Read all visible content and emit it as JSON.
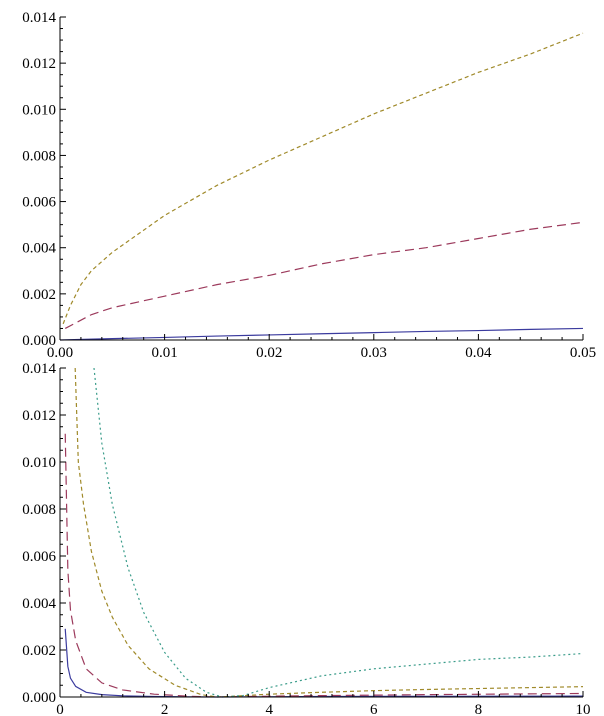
{
  "chart_data": [
    {
      "type": "line",
      "xlim": [
        0,
        0.05
      ],
      "ylim": [
        0,
        0.014
      ],
      "x_ticks": [
        "0.00",
        "0.01",
        "0.02",
        "0.03",
        "0.04",
        "0.05"
      ],
      "x_tick_values": [
        0,
        0.01,
        0.02,
        0.03,
        0.04,
        0.05
      ],
      "y_ticks": [
        "0.000",
        "0.002",
        "0.004",
        "0.006",
        "0.008",
        "0.010",
        "0.012",
        "0.014"
      ],
      "y_tick_values": [
        0,
        0.002,
        0.004,
        0.006,
        0.008,
        0.01,
        0.012,
        0.014
      ],
      "grid": false,
      "series": [
        {
          "color": "#3b3b9e",
          "style": "solid",
          "x": [
            0,
            0.005,
            0.01,
            0.015,
            0.02,
            0.025,
            0.03,
            0.035,
            0.04,
            0.045,
            0.05
          ],
          "y": [
            0,
            6e-05,
            0.00011,
            0.00017,
            0.00022,
            0.00027,
            0.00032,
            0.00037,
            0.00041,
            0.00046,
            0.0005
          ]
        },
        {
          "color": "#9c3a5c",
          "style": "dashed",
          "x": [
            0.0005,
            0.003,
            0.005,
            0.01,
            0.015,
            0.02,
            0.025,
            0.03,
            0.035,
            0.04,
            0.045,
            0.05
          ],
          "y": [
            0.0005,
            0.0011,
            0.0014,
            0.0019,
            0.0024,
            0.0028,
            0.0033,
            0.0037,
            0.004,
            0.0044,
            0.0048,
            0.0051
          ]
        },
        {
          "color": "#a08a2a",
          "style": "short-dashed",
          "x": [
            0.0003,
            0.001,
            0.002,
            0.003,
            0.005,
            0.0075,
            0.01,
            0.015,
            0.02,
            0.025,
            0.03,
            0.035,
            0.04,
            0.045,
            0.05
          ],
          "y": [
            0.0007,
            0.0015,
            0.0024,
            0.003,
            0.0038,
            0.0046,
            0.0054,
            0.0067,
            0.0078,
            0.0088,
            0.0098,
            0.0107,
            0.0116,
            0.0124,
            0.0133
          ]
        }
      ]
    },
    {
      "type": "line",
      "xlim": [
        0,
        10
      ],
      "ylim": [
        0,
        0.014
      ],
      "x_ticks": [
        "0",
        "2",
        "4",
        "6",
        "8",
        "10"
      ],
      "x_tick_values": [
        0,
        2,
        4,
        6,
        8,
        10
      ],
      "y_ticks": [
        "0.000",
        "0.002",
        "0.004",
        "0.006",
        "0.008",
        "0.010",
        "0.012",
        "0.014"
      ],
      "y_tick_values": [
        0,
        0.002,
        0.004,
        0.006,
        0.008,
        0.01,
        0.012,
        0.014
      ],
      "grid": false,
      "series": [
        {
          "color": "#3b3b9e",
          "style": "solid",
          "x": [
            0.1,
            0.15,
            0.2,
            0.3,
            0.5,
            0.8,
            1.2,
            1.8,
            2.5,
            3,
            3.5,
            5,
            7,
            10
          ],
          "y": [
            0.0029,
            0.0013,
            0.0008,
            0.00045,
            0.0002,
            0.0001,
            5e-05,
            2e-05,
            5e-06,
            0,
            5e-06,
            2e-05,
            3e-05,
            4e-05
          ]
        },
        {
          "color": "#9c3a5c",
          "style": "dashed",
          "x": [
            0.1,
            0.15,
            0.2,
            0.3,
            0.5,
            0.8,
            1.2,
            1.8,
            2.5,
            3,
            3.5,
            5,
            7,
            10
          ],
          "y": [
            0.0112,
            0.0054,
            0.0037,
            0.0024,
            0.0012,
            0.0006,
            0.0003,
            0.00012,
            3e-05,
            0,
            2e-05,
            6e-05,
            0.0001,
            0.00015
          ]
        },
        {
          "color": "#a08a2a",
          "style": "short-dashed",
          "x": [
            0.29,
            0.35,
            0.45,
            0.6,
            0.8,
            1.0,
            1.3,
            1.7,
            2.2,
            2.7,
            3.0,
            3.3,
            4.0,
            5.0,
            6.0,
            7.0,
            8.0,
            9.0,
            10.0
          ],
          "y": [
            0.014,
            0.01,
            0.0082,
            0.0062,
            0.0045,
            0.0034,
            0.0022,
            0.0012,
            0.0005,
            0.0001,
            0,
            3e-05,
            0.00012,
            0.0002,
            0.00027,
            0.00032,
            0.00036,
            0.0004,
            0.00044
          ]
        },
        {
          "color": "#3a9c8a",
          "style": "dotted",
          "x": [
            0.65,
            0.8,
            1.0,
            1.3,
            1.6,
            2.0,
            2.4,
            2.8,
            3.1,
            3.5,
            4.0,
            5.0,
            6.0,
            7.0,
            8.0,
            9.0,
            10.0
          ],
          "y": [
            0.014,
            0.0108,
            0.0082,
            0.0055,
            0.0036,
            0.0019,
            0.0008,
            0.0002,
            0,
            6e-05,
            0.0004,
            0.0009,
            0.0012,
            0.0014,
            0.0016,
            0.0017,
            0.00185
          ]
        }
      ]
    }
  ]
}
